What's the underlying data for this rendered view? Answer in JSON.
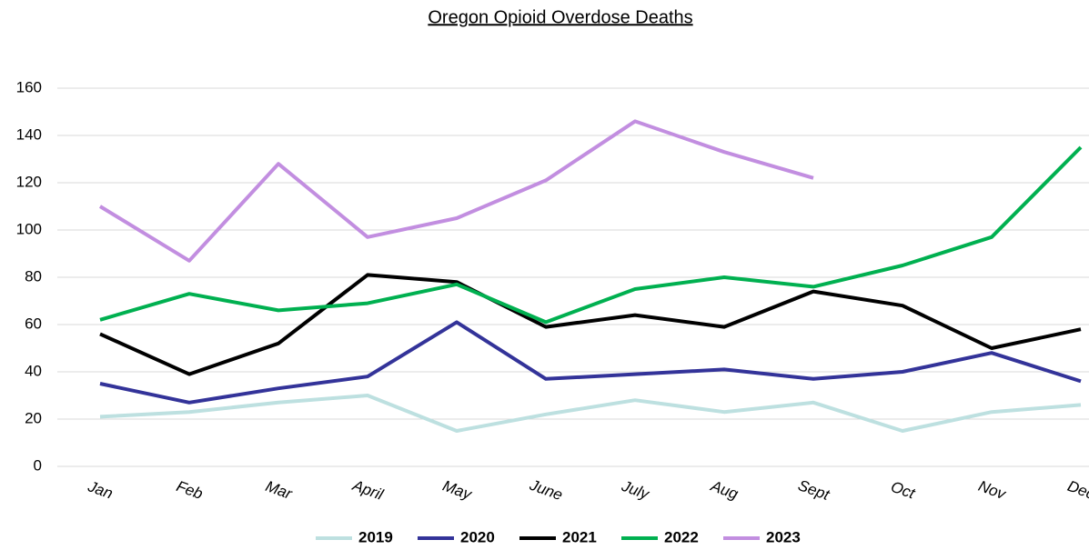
{
  "chart_data": {
    "type": "line",
    "title": "Oregon Opioid Overdose Deaths",
    "categories": [
      "Jan",
      "Feb",
      "Mar",
      "April",
      "May",
      "June",
      "July",
      "Aug",
      "Sept",
      "Oct",
      "Nov",
      "Dec"
    ],
    "series": [
      {
        "name": "2019",
        "color": "#bde0e0",
        "values": [
          21,
          23,
          27,
          30,
          15,
          22,
          28,
          23,
          27,
          15,
          23,
          26
        ]
      },
      {
        "name": "2020",
        "color": "#333399",
        "values": [
          35,
          27,
          33,
          38,
          61,
          37,
          39,
          41,
          37,
          40,
          48,
          36
        ]
      },
      {
        "name": "2021",
        "color": "#000000",
        "values": [
          56,
          39,
          52,
          81,
          78,
          59,
          64,
          59,
          74,
          68,
          50,
          58
        ]
      },
      {
        "name": "2022",
        "color": "#00b050",
        "values": [
          62,
          73,
          66,
          69,
          77,
          61,
          75,
          80,
          76,
          85,
          97,
          135
        ]
      },
      {
        "name": "2023",
        "color": "#c28ee0",
        "values": [
          110,
          87,
          128,
          97,
          105,
          121,
          146,
          133,
          122,
          null,
          null,
          null
        ]
      }
    ],
    "ylim": [
      0,
      160
    ],
    "yticks": [
      0,
      20,
      40,
      60,
      80,
      100,
      120,
      140,
      160
    ],
    "grid": true,
    "legend": "bottom"
  }
}
